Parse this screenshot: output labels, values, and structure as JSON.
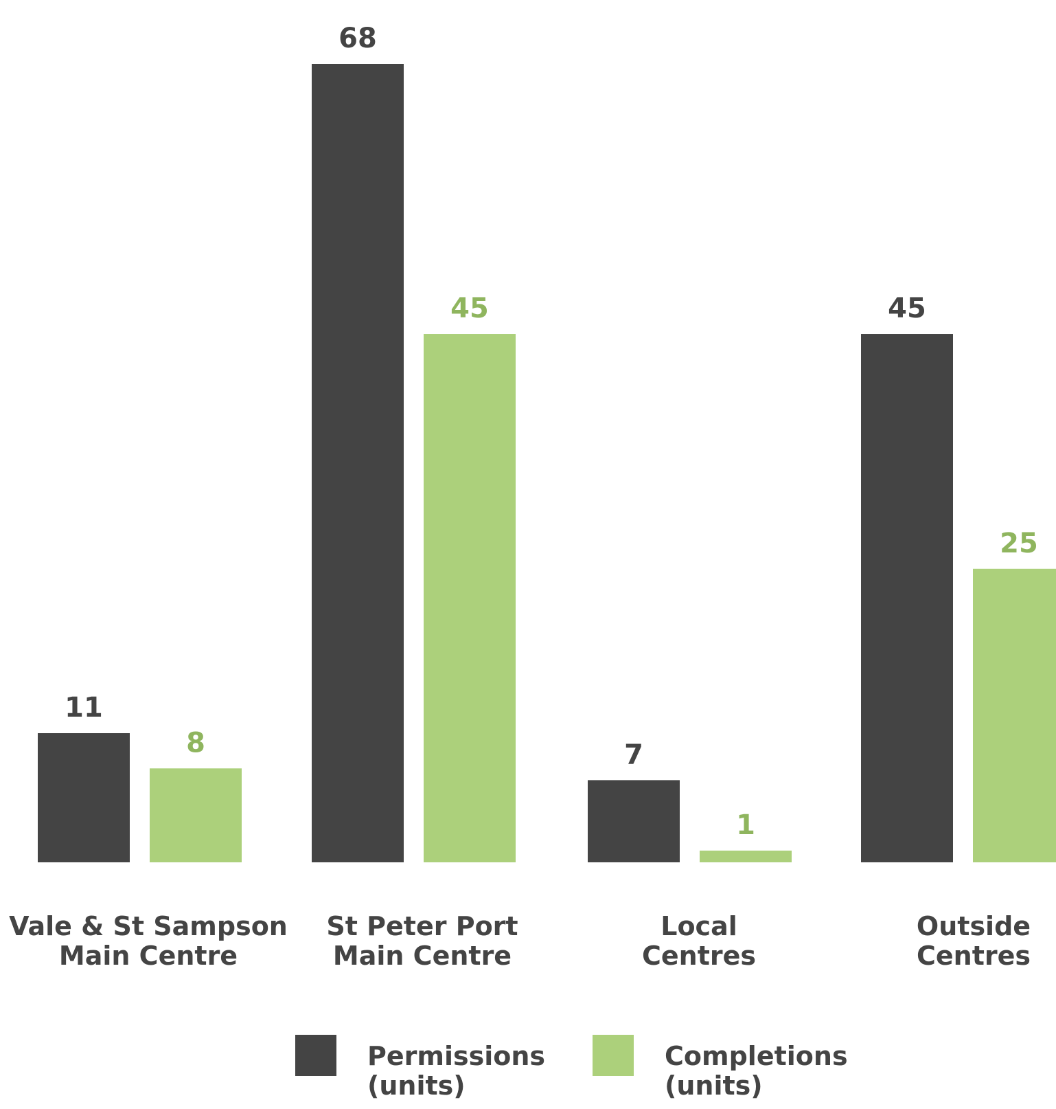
{
  "chart_data": {
    "type": "bar",
    "categories": [
      [
        "Vale & St Sampson",
        "Main Centre"
      ],
      [
        "St Peter Port",
        "Main Centre"
      ],
      [
        "Local",
        "Centres"
      ],
      [
        "Outside",
        "Centres"
      ]
    ],
    "series": [
      {
        "name": [
          "Permissions",
          "(units)"
        ],
        "values": [
          11,
          68,
          7,
          45
        ],
        "color": "#444444",
        "label_color": "#444444"
      },
      {
        "name": [
          "Completions",
          "(units)"
        ],
        "values": [
          8,
          45,
          1,
          25
        ],
        "color": "#acd07b",
        "label_color": "#8fb55e"
      }
    ],
    "title": "",
    "xlabel": "",
    "ylabel": "",
    "ylim": [
      0,
      68
    ],
    "grid": false,
    "legend_position": "bottom-center",
    "data_labels": true
  }
}
